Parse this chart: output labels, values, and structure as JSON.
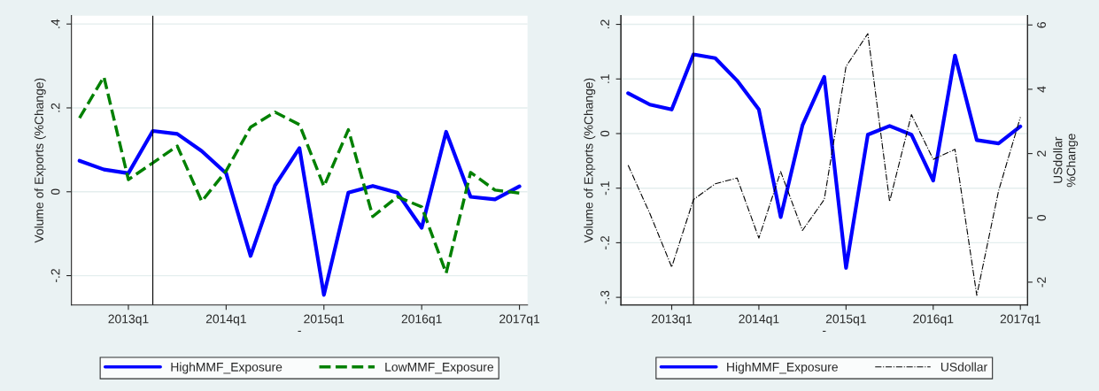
{
  "chart_data": [
    {
      "type": "line",
      "xlabel": "-",
      "ylabel": "Volume of Exports (%Change)",
      "categories": [
        null,
        null,
        "2013q1",
        null,
        null,
        null,
        "2014q1",
        null,
        null,
        null,
        "2015q1",
        null,
        null,
        null,
        "2016q1",
        null,
        null,
        null,
        "2017q1"
      ],
      "ylim": [
        -0.27,
        0.42
      ],
      "yticks": [
        {
          "value": -0.2,
          "label": "-.2"
        },
        {
          "value": 0,
          "label": "0"
        },
        {
          "value": 0.2,
          "label": ".2"
        },
        {
          "value": 0.4,
          "label": ".4"
        }
      ],
      "grid": "y",
      "legend": "bottom",
      "series": [
        {
          "name": "HighMMF_Exposure",
          "color": "#0000ff",
          "line_style": "solid",
          "values": [
            0.074,
            0.053,
            0.044,
            0.145,
            0.138,
            0.097,
            0.044,
            -0.153,
            0.015,
            0.104,
            -0.246,
            -0.002,
            0.014,
            -0.002,
            -0.086,
            0.143,
            -0.012,
            -0.018,
            0.013
          ]
        },
        {
          "name": "LowMMF_Exposure",
          "color": "#008000",
          "line_style": "dashed",
          "values": [
            0.176,
            0.274,
            0.029,
            0.069,
            0.109,
            -0.023,
            0.05,
            0.154,
            0.19,
            0.16,
            0.013,
            0.148,
            -0.059,
            -0.012,
            -0.036,
            -0.194,
            0.046,
            0.004,
            -0.003
          ]
        }
      ]
    },
    {
      "type": "line",
      "xlabel": "-",
      "ylabel": "Volume of Exports (%Change)",
      "y2label": "USdollar\n%Change",
      "categories": [
        null,
        null,
        "2013q1",
        null,
        null,
        null,
        "2014q1",
        null,
        null,
        null,
        "2015q1",
        null,
        null,
        null,
        "2016q1",
        null,
        null,
        null,
        "2017q1"
      ],
      "ylim": [
        -0.314,
        0.216
      ],
      "yticks": [
        {
          "value": -0.3,
          "label": "-.3"
        },
        {
          "value": -0.2,
          "label": "-.2"
        },
        {
          "value": -0.1,
          "label": "-.1"
        },
        {
          "value": 0,
          "label": "0"
        },
        {
          "value": 0.1,
          "label": ".1"
        },
        {
          "value": 0.2,
          "label": ".2"
        }
      ],
      "y2lim": [
        -2.71,
        6.29
      ],
      "y2ticks": [
        -2,
        0,
        2,
        4,
        6
      ],
      "grid": "y",
      "legend": "bottom",
      "series": [
        {
          "name": "HighMMF_Exposure",
          "color": "#0000ff",
          "line_style": "solid",
          "values": [
            0.074,
            0.053,
            0.044,
            0.145,
            0.138,
            0.097,
            0.044,
            -0.153,
            0.015,
            0.104,
            -0.246,
            -0.002,
            0.014,
            -0.002,
            -0.086,
            0.143,
            -0.012,
            -0.018,
            0.013
          ]
        },
        {
          "name": "USdollar",
          "color": "#000000",
          "line_style": "dashdot",
          "axis": "y2",
          "values": [
            1.64,
            0.13,
            -1.53,
            0.57,
            1.06,
            1.24,
            -0.63,
            1.44,
            -0.39,
            0.57,
            4.71,
            5.73,
            0.51,
            3.21,
            1.82,
            2.13,
            -2.41,
            0.84,
            3.13
          ]
        }
      ]
    }
  ]
}
